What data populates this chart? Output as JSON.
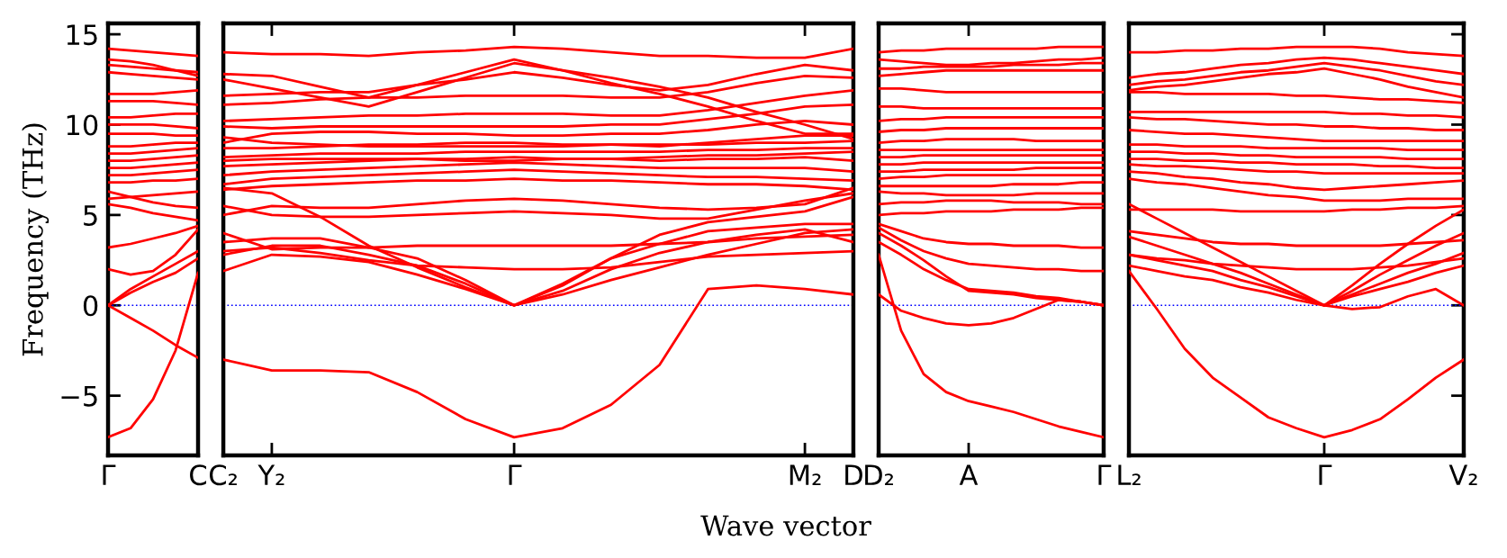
{
  "chart_data": [
    {
      "type": "line",
      "ylabel": "Frequency (THz)",
      "ylim": [
        -8.3,
        15.6
      ],
      "yticks": [
        -5,
        0,
        5,
        10,
        15
      ],
      "categories": [
        "Γ",
        null,
        null,
        null,
        "C"
      ],
      "ref_lines": [
        {
          "axis": "y",
          "value": 0,
          "color": "#0000ff",
          "line_style": "dotted"
        }
      ],
      "series": [
        {
          "color": "#ff0000",
          "values": [
            -7.3,
            -6.8,
            -5.2,
            -2.5,
            1.8
          ]
        },
        {
          "color": "#ff0000",
          "values": [
            0,
            -0.7,
            -1.4,
            -2.2,
            -2.9
          ]
        },
        {
          "color": "#ff0000",
          "values": [
            0,
            0.7,
            1.3,
            1.8,
            2.6
          ]
        },
        {
          "color": "#ff0000",
          "values": [
            0,
            0.9,
            1.6,
            2.3,
            3.0
          ]
        },
        {
          "color": "#ff0000",
          "values": [
            2.0,
            1.7,
            1.9,
            2.8,
            4.2
          ]
        },
        {
          "color": "#ff0000",
          "values": [
            3.2,
            3.4,
            3.7,
            4.0,
            4.4
          ]
        },
        {
          "color": "#ff0000",
          "values": [
            5.6,
            5.4,
            5.1,
            4.9,
            4.7
          ]
        },
        {
          "color": "#ff0000",
          "values": [
            5.9,
            6.0,
            6.1,
            6.2,
            6.3
          ]
        },
        {
          "color": "#ff0000",
          "values": [
            6.3,
            6.0,
            5.7,
            5.5,
            5.4
          ]
        },
        {
          "color": "#ff0000",
          "values": [
            6.8,
            6.8,
            6.9,
            6.9,
            7.0
          ]
        },
        {
          "color": "#ff0000",
          "values": [
            7.2,
            7.2,
            7.3,
            7.4,
            7.5
          ]
        },
        {
          "color": "#ff0000",
          "values": [
            7.6,
            7.6,
            7.7,
            7.8,
            7.9
          ]
        },
        {
          "color": "#ff0000",
          "values": [
            8.0,
            8.0,
            8.1,
            8.2,
            8.3
          ]
        },
        {
          "color": "#ff0000",
          "values": [
            8.4,
            8.4,
            8.5,
            8.6,
            8.7
          ]
        },
        {
          "color": "#ff0000",
          "values": [
            8.8,
            8.8,
            8.9,
            9.0,
            9.0
          ]
        },
        {
          "color": "#ff0000",
          "values": [
            9.5,
            9.5,
            9.5,
            9.4,
            9.4
          ]
        },
        {
          "color": "#ff0000",
          "values": [
            10.0,
            10.0,
            10.0,
            9.9,
            9.8
          ]
        },
        {
          "color": "#ff0000",
          "values": [
            10.4,
            10.4,
            10.5,
            10.6,
            10.6
          ]
        },
        {
          "color": "#ff0000",
          "values": [
            11.3,
            11.3,
            11.3,
            11.2,
            11.1
          ]
        },
        {
          "color": "#ff0000",
          "values": [
            11.7,
            11.7,
            11.7,
            11.8,
            11.9
          ]
        },
        {
          "color": "#ff0000",
          "values": [
            12.9,
            12.8,
            12.7,
            12.6,
            12.5
          ]
        },
        {
          "color": "#ff0000",
          "values": [
            13.3,
            13.2,
            13.1,
            13.0,
            12.9
          ]
        },
        {
          "color": "#ff0000",
          "values": [
            13.6,
            13.5,
            13.3,
            13.0,
            12.7
          ]
        },
        {
          "color": "#ff0000",
          "values": [
            14.2,
            14.1,
            14.0,
            13.9,
            13.8
          ]
        }
      ]
    },
    {
      "type": "line",
      "xlabel": "Wave vector",
      "ylim": [
        -8.3,
        15.6
      ],
      "tick_labels": "x",
      "categories": [
        "C₂",
        "Y₂",
        null,
        null,
        null,
        null,
        "Γ",
        null,
        null,
        null,
        null,
        null,
        "M₂",
        "D"
      ],
      "ref_lines": [
        {
          "axis": "y",
          "value": 0,
          "color": "#0000ff",
          "line_style": "dotted"
        }
      ],
      "series": [
        {
          "color": "#ff0000",
          "values": [
            -3.0,
            -3.6,
            -3.6,
            -3.7,
            -4.8,
            -6.3,
            -7.3,
            -6.8,
            -5.5,
            -3.3,
            0.9,
            1.1,
            0.9,
            0.6
          ]
        },
        {
          "color": "#ff0000",
          "values": [
            1.9,
            2.8,
            2.7,
            2.4,
            1.7,
            0.9,
            0,
            0.6,
            1.4,
            2.1,
            2.8,
            3.4,
            4.0,
            4.2
          ]
        },
        {
          "color": "#ff0000",
          "values": [
            2.8,
            3.3,
            3.3,
            2.8,
            2.2,
            1.2,
            0,
            0.8,
            2.0,
            2.9,
            3.5,
            3.9,
            4.2,
            3.5
          ]
        },
        {
          "color": "#ff0000",
          "values": [
            3.5,
            3.7,
            3.7,
            3.2,
            2.6,
            1.4,
            0,
            1.2,
            2.6,
            3.4,
            4.1,
            4.3,
            4.5,
            4.5
          ]
        },
        {
          "color": "#ff0000",
          "values": [
            6.5,
            6.2,
            4.9,
            3.3,
            2.1,
            1.0,
            0,
            1.1,
            2.6,
            3.9,
            4.6,
            4.9,
            5.2,
            6.0
          ]
        },
        {
          "color": "#ff0000",
          "values": [
            3.0,
            3.2,
            2.9,
            2.5,
            2.2,
            2.1,
            2.0,
            2.0,
            2.1,
            2.4,
            2.7,
            2.8,
            2.9,
            3.0
          ]
        },
        {
          "color": "#ff0000",
          "values": [
            4.0,
            3.1,
            3.2,
            3.2,
            3.3,
            3.3,
            3.3,
            3.3,
            3.3,
            3.4,
            3.5,
            3.7,
            3.8,
            3.9
          ]
        },
        {
          "color": "#ff0000",
          "values": [
            5.0,
            5.5,
            5.4,
            5.4,
            5.6,
            5.8,
            5.9,
            5.8,
            5.6,
            5.4,
            5.3,
            5.4,
            5.6,
            6.5
          ]
        },
        {
          "color": "#ff0000",
          "values": [
            5.5,
            5.0,
            4.9,
            4.9,
            5.0,
            5.1,
            5.2,
            5.1,
            5.0,
            4.8,
            4.8,
            5.3,
            5.8,
            6.2
          ]
        },
        {
          "color": "#ff0000",
          "values": [
            14.0,
            13.9,
            13.9,
            13.8,
            14.0,
            14.1,
            14.3,
            14.2,
            14.0,
            13.8,
            13.8,
            13.7,
            13.7,
            14.2
          ]
        },
        {
          "color": "#ff0000",
          "values": [
            12.8,
            12.7,
            12.1,
            11.5,
            12.2,
            12.9,
            13.6,
            13.0,
            12.3,
            11.7,
            11.0,
            10.2,
            9.5,
            9.5
          ]
        },
        {
          "color": "#ff0000",
          "values": [
            12.5,
            12.0,
            11.5,
            11.0,
            11.8,
            12.6,
            13.4,
            13.0,
            12.6,
            12.1,
            11.5,
            10.7,
            10.0,
            9.2
          ]
        },
        {
          "color": "#ff0000",
          "values": [
            11.6,
            11.7,
            11.8,
            11.8,
            12.2,
            12.5,
            12.9,
            12.6,
            12.2,
            11.9,
            12.2,
            12.8,
            13.3,
            13.0
          ]
        },
        {
          "color": "#ff0000",
          "values": [
            11.1,
            11.2,
            11.4,
            11.5,
            11.5,
            11.6,
            11.6,
            11.6,
            11.5,
            11.5,
            11.8,
            12.3,
            12.7,
            12.6
          ]
        },
        {
          "color": "#ff0000",
          "values": [
            10.2,
            10.3,
            10.4,
            10.5,
            10.5,
            10.6,
            10.6,
            10.6,
            10.5,
            10.5,
            10.8,
            11.2,
            11.6,
            11.9
          ]
        },
        {
          "color": "#ff0000",
          "values": [
            9.9,
            9.8,
            9.9,
            9.9,
            9.9,
            9.9,
            9.9,
            9.9,
            10.0,
            10.0,
            10.3,
            10.6,
            11.0,
            11.1
          ]
        },
        {
          "color": "#ff0000",
          "values": [
            9.0,
            9.5,
            9.6,
            9.6,
            9.5,
            9.5,
            9.4,
            9.4,
            9.5,
            9.5,
            9.7,
            10.0,
            10.2,
            10.0
          ]
        },
        {
          "color": "#ff0000",
          "values": [
            9.3,
            9.0,
            8.9,
            8.8,
            8.8,
            8.8,
            8.8,
            8.8,
            8.9,
            8.9,
            8.9,
            9.0,
            9.0,
            9.1
          ]
        },
        {
          "color": "#ff0000",
          "values": [
            8.7,
            8.7,
            8.8,
            8.9,
            8.9,
            9.0,
            9.0,
            8.9,
            8.9,
            8.8,
            9.0,
            9.2,
            9.4,
            9.4
          ]
        },
        {
          "color": "#ff0000",
          "values": [
            8.2,
            8.3,
            8.4,
            8.4,
            8.4,
            8.5,
            8.5,
            8.5,
            8.5,
            8.5,
            8.6,
            8.6,
            8.7,
            8.7
          ]
        },
        {
          "color": "#ff0000",
          "values": [
            8.0,
            8.1,
            8.1,
            8.1,
            8.1,
            8.0,
            8.0,
            8.1,
            8.1,
            8.2,
            8.3,
            8.3,
            8.4,
            8.5
          ]
        },
        {
          "color": "#ff0000",
          "values": [
            7.7,
            7.8,
            7.9,
            8.0,
            8.1,
            8.1,
            8.2,
            8.1,
            8.1,
            8.0,
            8.1,
            8.1,
            8.2,
            8.0
          ]
        },
        {
          "color": "#ff0000",
          "values": [
            7.2,
            7.4,
            7.5,
            7.6,
            7.7,
            7.8,
            7.9,
            7.8,
            7.7,
            7.6,
            7.6,
            7.6,
            7.6,
            7.4
          ]
        },
        {
          "color": "#ff0000",
          "values": [
            6.7,
            7.0,
            7.1,
            7.2,
            7.3,
            7.4,
            7.5,
            7.4,
            7.3,
            7.2,
            7.1,
            7.1,
            7.0,
            6.9
          ]
        },
        {
          "color": "#ff0000",
          "values": [
            6.4,
            6.6,
            6.7,
            6.8,
            6.9,
            6.9,
            7.0,
            6.9,
            6.9,
            6.8,
            6.7,
            6.7,
            6.6,
            6.4
          ]
        }
      ]
    },
    {
      "type": "line",
      "ylim": [
        -8.3,
        15.6
      ],
      "tick_labels": "x",
      "categories": [
        "D₂",
        null,
        null,
        null,
        "A",
        null,
        null,
        null,
        null,
        null,
        "Γ"
      ],
      "ref_lines": [
        {
          "axis": "y",
          "value": 0,
          "color": "#0000ff",
          "line_style": "dotted"
        }
      ],
      "series": [
        {
          "color": "#ff0000",
          "values": [
            2.8,
            -1.4,
            -3.8,
            -4.8,
            -5.3,
            -5.6,
            -5.9,
            -6.3,
            -6.7,
            -7.0,
            -7.3
          ]
        },
        {
          "color": "#ff0000",
          "values": [
            0.6,
            -0.3,
            -0.7,
            -1.0,
            -1.1,
            -1.0,
            -0.7,
            -0.2,
            0.3,
            0.2,
            0
          ]
        },
        {
          "color": "#ff0000",
          "values": [
            3.5,
            2.8,
            2.0,
            1.4,
            0.9,
            0.8,
            0.7,
            0.5,
            0.4,
            0.2,
            0
          ]
        },
        {
          "color": "#ff0000",
          "values": [
            4.0,
            3.3,
            2.5,
            1.6,
            0.8,
            0.7,
            0.6,
            0.4,
            0.3,
            0.2,
            0
          ]
        },
        {
          "color": "#ff0000",
          "values": [
            4.3,
            3.6,
            3.0,
            2.6,
            2.3,
            2.2,
            2.1,
            2.0,
            2.0,
            1.9,
            1.9
          ]
        },
        {
          "color": "#ff0000",
          "values": [
            4.5,
            4.1,
            3.7,
            3.5,
            3.4,
            3.4,
            3.3,
            3.3,
            3.3,
            3.2,
            3.2
          ]
        },
        {
          "color": "#ff0000",
          "values": [
            14.0,
            14.1,
            14.1,
            14.2,
            14.2,
            14.2,
            14.2,
            14.2,
            14.3,
            14.3,
            14.3
          ]
        },
        {
          "color": "#ff0000",
          "values": [
            13.6,
            13.5,
            13.4,
            13.3,
            13.3,
            13.4,
            13.4,
            13.5,
            13.6,
            13.6,
            13.7
          ]
        },
        {
          "color": "#ff0000",
          "values": [
            13.1,
            13.1,
            13.2,
            13.2,
            13.2,
            13.2,
            13.3,
            13.3,
            13.3,
            13.4,
            13.4
          ]
        },
        {
          "color": "#ff0000",
          "values": [
            12.7,
            12.8,
            12.9,
            13.0,
            13.0,
            13.0,
            13.0,
            13.0,
            13.0,
            13.0,
            13.0
          ]
        },
        {
          "color": "#ff0000",
          "values": [
            12.0,
            12.0,
            11.9,
            11.8,
            11.8,
            11.8,
            11.8,
            11.8,
            11.8,
            11.8,
            11.8
          ]
        },
        {
          "color": "#ff0000",
          "values": [
            11.0,
            11.0,
            10.9,
            10.9,
            10.9,
            10.9,
            10.9,
            10.9,
            10.9,
            10.9,
            10.9
          ]
        },
        {
          "color": "#ff0000",
          "values": [
            10.2,
            10.3,
            10.3,
            10.4,
            10.4,
            10.4,
            10.4,
            10.4,
            10.4,
            10.4,
            10.4
          ]
        },
        {
          "color": "#ff0000",
          "values": [
            9.6,
            9.7,
            9.7,
            9.8,
            9.8,
            9.8,
            9.8,
            9.8,
            9.8,
            9.8,
            9.8
          ]
        },
        {
          "color": "#ff0000",
          "values": [
            9.0,
            9.1,
            9.1,
            9.2,
            9.2,
            9.2,
            9.2,
            9.1,
            9.1,
            9.1,
            9.1
          ]
        },
        {
          "color": "#ff0000",
          "values": [
            8.6,
            8.6,
            8.6,
            8.6,
            8.6,
            8.6,
            8.6,
            8.6,
            8.6,
            8.6,
            8.6
          ]
        },
        {
          "color": "#ff0000",
          "values": [
            8.2,
            8.2,
            8.3,
            8.3,
            8.3,
            8.3,
            8.3,
            8.3,
            8.3,
            8.3,
            8.3
          ]
        },
        {
          "color": "#ff0000",
          "values": [
            7.8,
            7.8,
            7.9,
            7.9,
            7.9,
            7.9,
            7.9,
            7.9,
            7.9,
            7.9,
            7.9
          ]
        },
        {
          "color": "#ff0000",
          "values": [
            7.4,
            7.4,
            7.5,
            7.5,
            7.5,
            7.5,
            7.5,
            7.6,
            7.6,
            7.6,
            7.6
          ]
        },
        {
          "color": "#ff0000",
          "values": [
            7.0,
            7.1,
            7.1,
            7.2,
            7.2,
            7.2,
            7.2,
            7.2,
            7.2,
            7.2,
            7.2
          ]
        },
        {
          "color": "#ff0000",
          "values": [
            6.6,
            6.6,
            6.6,
            6.6,
            6.6,
            6.6,
            6.7,
            6.7,
            6.7,
            6.8,
            6.8
          ]
        },
        {
          "color": "#ff0000",
          "values": [
            6.3,
            6.2,
            6.2,
            6.1,
            6.1,
            6.1,
            6.1,
            6.2,
            6.2,
            6.2,
            6.2
          ]
        },
        {
          "color": "#ff0000",
          "values": [
            5.6,
            5.7,
            5.7,
            5.8,
            5.8,
            5.8,
            5.7,
            5.7,
            5.7,
            5.6,
            5.6
          ]
        },
        {
          "color": "#ff0000",
          "values": [
            5.0,
            5.1,
            5.1,
            5.2,
            5.2,
            5.2,
            5.3,
            5.3,
            5.3,
            5.4,
            5.4
          ]
        }
      ]
    },
    {
      "type": "line",
      "ylim": [
        -8.3,
        15.6
      ],
      "tick_labels": "x",
      "yticks": [
        {
          "value": -5,
          "label": null
        },
        {
          "value": 0,
          "label": null
        },
        {
          "value": 5,
          "label": null
        },
        {
          "value": 10,
          "label": null
        },
        {
          "value": 15,
          "label": null
        }
      ],
      "categories": [
        "L₂",
        null,
        null,
        null,
        null,
        null,
        null,
        "Γ",
        null,
        null,
        null,
        null,
        "V₂"
      ],
      "ref_lines": [
        {
          "axis": "y",
          "value": 0,
          "color": "#0000ff",
          "line_style": "dotted"
        }
      ],
      "series": [
        {
          "color": "#ff0000",
          "values": [
            1.9,
            -0.2,
            -2.4,
            -4.0,
            -5.1,
            -6.2,
            -6.8,
            -7.3,
            -6.9,
            -6.3,
            -5.2,
            -4.0,
            -3.0
          ]
        },
        {
          "color": "#ff0000",
          "values": [
            null,
            null,
            null,
            null,
            null,
            null,
            null,
            0,
            -0.2,
            -0.1,
            0.5,
            0.9,
            0
          ]
        },
        {
          "color": "#ff0000",
          "values": [
            2.2,
            1.9,
            1.6,
            1.4,
            1.0,
            0.7,
            0.3,
            0,
            0.5,
            0.9,
            1.3,
            1.8,
            2.2
          ]
        },
        {
          "color": "#ff0000",
          "values": [
            2.8,
            2.5,
            2.2,
            1.9,
            1.4,
            1.0,
            0.5,
            0,
            0.6,
            1.2,
            1.8,
            2.3,
            2.9
          ]
        },
        {
          "color": "#ff0000",
          "values": [
            3.8,
            3.3,
            2.8,
            2.3,
            1.8,
            1.2,
            0.6,
            0,
            0.8,
            1.7,
            2.5,
            3.3,
            4.0
          ]
        },
        {
          "color": "#ff0000",
          "values": [
            5.6,
            4.8,
            4.0,
            3.2,
            2.4,
            1.6,
            0.8,
            0,
            1.1,
            2.3,
            3.4,
            4.4,
            5.3
          ]
        },
        {
          "color": "#ff0000",
          "values": [
            2.8,
            2.6,
            2.5,
            2.3,
            2.2,
            2.1,
            2.0,
            2.0,
            2.0,
            2.1,
            2.2,
            2.4,
            2.6
          ]
        },
        {
          "color": "#ff0000",
          "values": [
            4.1,
            3.9,
            3.7,
            3.5,
            3.4,
            3.4,
            3.3,
            3.3,
            3.3,
            3.3,
            3.4,
            3.5,
            3.6
          ]
        },
        {
          "color": "#ff0000",
          "values": [
            14.0,
            14.0,
            14.1,
            14.1,
            14.2,
            14.2,
            14.3,
            14.3,
            14.3,
            14.2,
            14.0,
            13.9,
            13.8
          ]
        },
        {
          "color": "#ff0000",
          "values": [
            12.6,
            12.8,
            12.9,
            13.1,
            13.3,
            13.4,
            13.6,
            13.7,
            13.6,
            13.4,
            13.2,
            13.0,
            12.8
          ]
        },
        {
          "color": "#ff0000",
          "values": [
            12.2,
            12.4,
            12.5,
            12.7,
            12.9,
            13.0,
            13.2,
            13.4,
            13.2,
            13.0,
            12.7,
            12.4,
            12.2
          ]
        },
        {
          "color": "#ff0000",
          "values": [
            11.9,
            12.1,
            12.2,
            12.4,
            12.6,
            12.8,
            12.9,
            13.1,
            12.8,
            12.5,
            12.1,
            11.8,
            11.5
          ]
        },
        {
          "color": "#ff0000",
          "values": [
            11.8,
            11.8,
            11.7,
            11.7,
            11.7,
            11.7,
            11.6,
            11.6,
            11.5,
            11.4,
            11.4,
            11.3,
            11.2
          ]
        },
        {
          "color": "#ff0000",
          "values": [
            10.7,
            10.7,
            10.7,
            10.7,
            10.7,
            10.7,
            10.7,
            10.7,
            10.6,
            10.6,
            10.5,
            10.5,
            10.4
          ]
        },
        {
          "color": "#ff0000",
          "values": [
            10.4,
            10.3,
            10.3,
            10.2,
            10.1,
            10.0,
            10.0,
            9.9,
            9.9,
            9.8,
            9.8,
            9.7,
            9.7
          ]
        },
        {
          "color": "#ff0000",
          "values": [
            9.7,
            9.6,
            9.5,
            9.5,
            9.4,
            9.3,
            9.2,
            9.1,
            9.1,
            9.1,
            9.1,
            9.1,
            9.1
          ]
        },
        {
          "color": "#ff0000",
          "values": [
            8.9,
            8.9,
            8.8,
            8.8,
            8.8,
            8.7,
            8.7,
            8.7,
            8.7,
            8.7,
            8.6,
            8.6,
            8.6
          ]
        },
        {
          "color": "#ff0000",
          "values": [
            8.5,
            8.5,
            8.4,
            8.4,
            8.3,
            8.3,
            8.2,
            8.2,
            8.2,
            8.2,
            8.1,
            8.1,
            8.1
          ]
        },
        {
          "color": "#ff0000",
          "values": [
            8.1,
            8.1,
            8.0,
            8.0,
            7.9,
            7.9,
            7.8,
            7.8,
            7.8,
            7.7,
            7.7,
            7.6,
            7.6
          ]
        },
        {
          "color": "#ff0000",
          "values": [
            7.8,
            7.7,
            7.7,
            7.6,
            7.5,
            7.4,
            7.4,
            7.3,
            7.3,
            7.3,
            7.3,
            7.3,
            7.3
          ]
        },
        {
          "color": "#ff0000",
          "values": [
            7.4,
            7.3,
            7.1,
            7.0,
            6.8,
            6.7,
            6.5,
            6.4,
            6.5,
            6.6,
            6.7,
            6.8,
            6.9
          ]
        },
        {
          "color": "#ff0000",
          "values": [
            7.0,
            6.8,
            6.7,
            6.5,
            6.3,
            6.1,
            6.0,
            5.8,
            5.8,
            5.8,
            5.9,
            5.9,
            5.9
          ]
        },
        {
          "color": "#ff0000",
          "values": [
            5.3,
            5.3,
            5.3,
            5.3,
            5.2,
            5.2,
            5.2,
            5.2,
            5.3,
            5.3,
            5.4,
            5.4,
            5.5
          ]
        }
      ]
    }
  ]
}
